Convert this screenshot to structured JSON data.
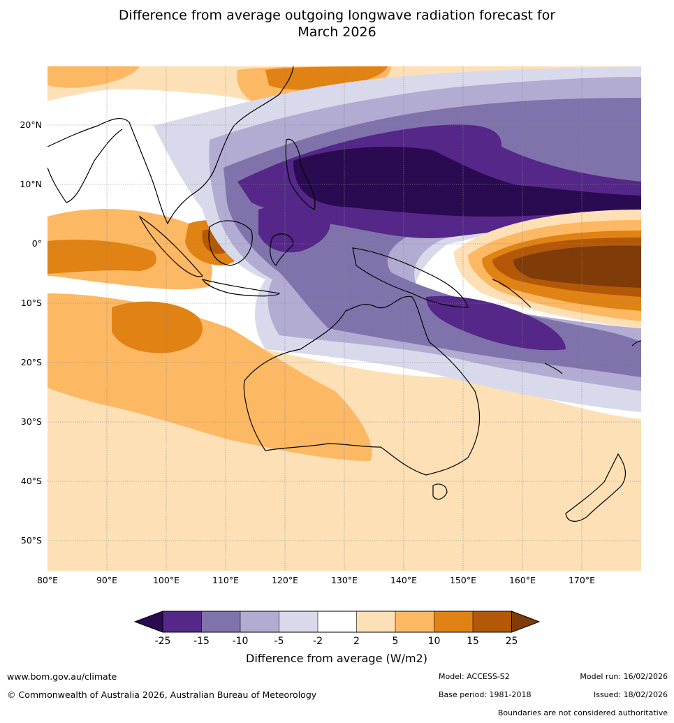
{
  "title": {
    "line1": "Difference from average outgoing longwave radiation forecast for",
    "line2": "March 2026"
  },
  "map": {
    "lat_labels": [
      "20°N",
      "10°N",
      "0°",
      "10°S",
      "20°S",
      "30°S",
      "40°S",
      "50°S"
    ],
    "lon_labels": [
      "80°E",
      "90°E",
      "100°E",
      "110°E",
      "120°E",
      "130°E",
      "140°E",
      "150°E",
      "160°E",
      "170°E"
    ]
  },
  "legend": {
    "ticks": [
      "-25",
      "-15",
      "-10",
      "-5",
      "-2",
      "2",
      "5",
      "10",
      "15",
      "25"
    ],
    "colors": [
      "#2a0b52",
      "#542788",
      "#8073ac",
      "#b2abd2",
      "#d8daeb",
      "#ffffff",
      "#fee0b6",
      "#fdb863",
      "#e08214",
      "#b35806",
      "#7f3b08"
    ],
    "title": "Difference from average (W/m2)"
  },
  "footer": {
    "website": "www.bom.gov.au/climate",
    "copyright": "© Commonwealth of Australia 2026, Australian Bureau of Meteorology",
    "model": "Model: ACCESS-S2",
    "base_period": "Base period: 1981-2018",
    "model_run": "Model run: 16/02/2026",
    "issued": "Issued: 18/02/2026",
    "disclaimer": "Boundaries are not considered authoritative"
  }
}
